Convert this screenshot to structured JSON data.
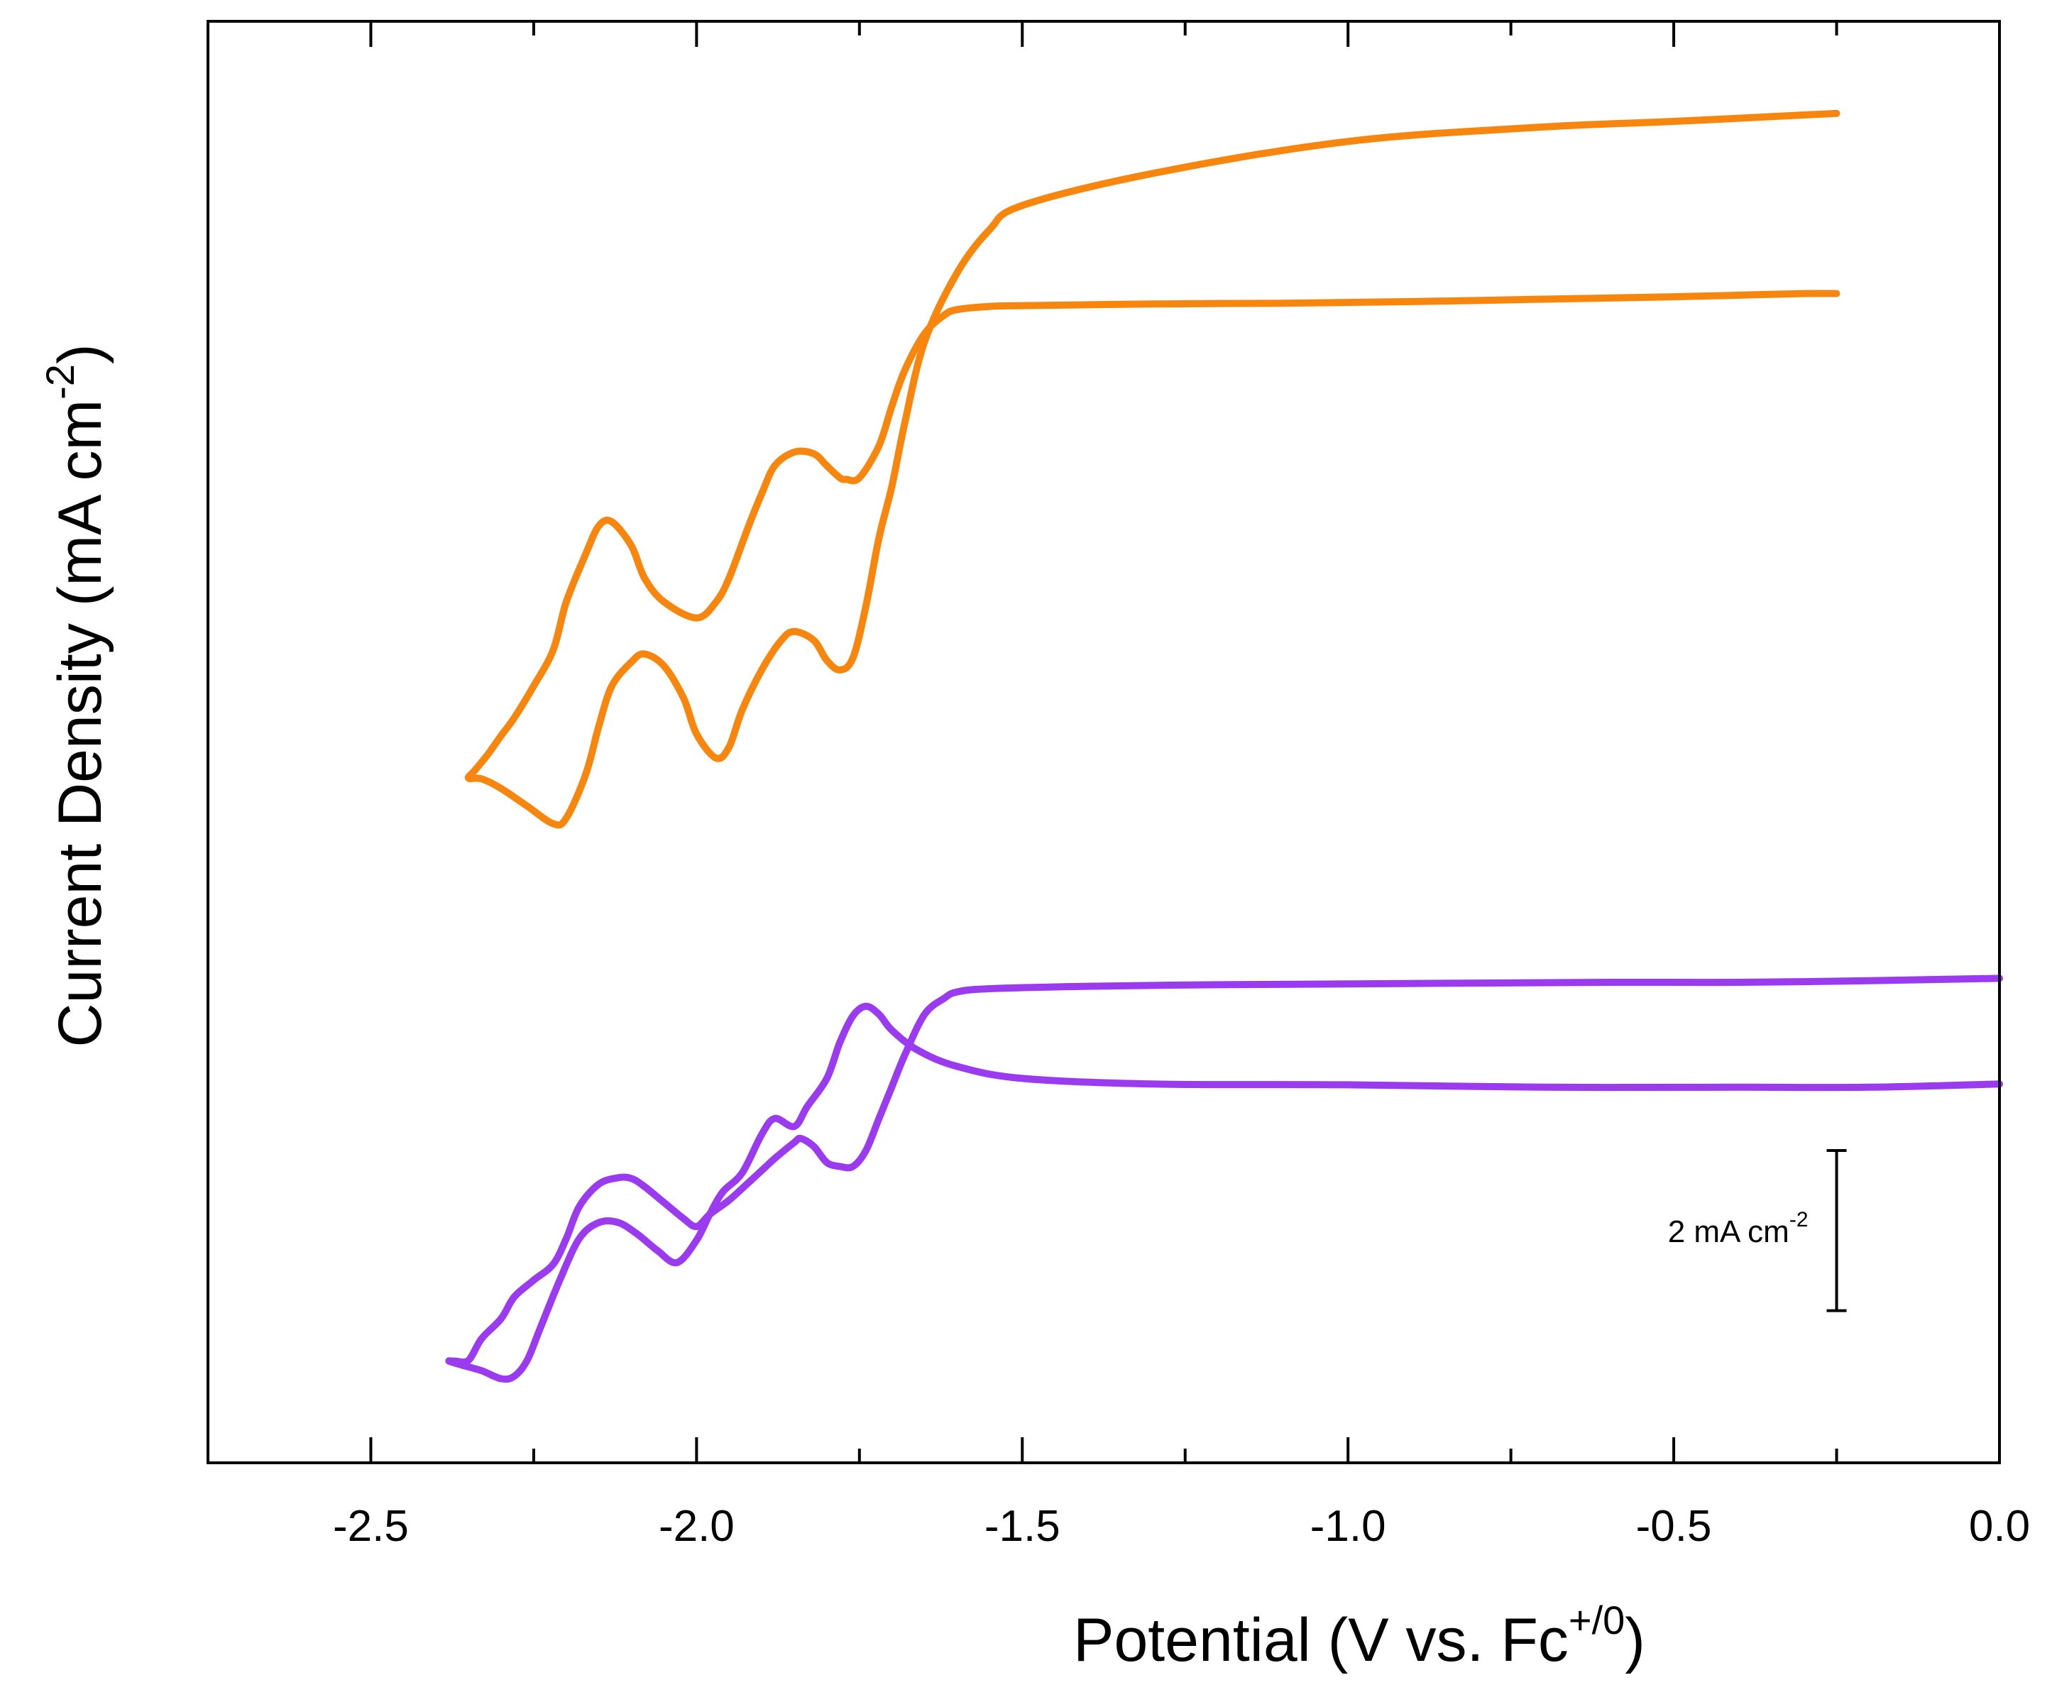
{
  "chart_data": {
    "type": "line",
    "title": "",
    "xlabel": "Potential (V vs. Fc",
    "xlabel_superscript": "+/0",
    "xlabel_suffix": ")",
    "ylabel": "Current Density (mA cm",
    "ylabel_superscript": "-2",
    "ylabel_suffix": ")",
    "xlim": [
      -2.75,
      0.0
    ],
    "ylim": [
      -11.0,
      7.0
    ],
    "x_ticks": [
      -2.5,
      -2.0,
      -1.5,
      -1.0,
      -0.5,
      0.0
    ],
    "x_tick_labels": [
      "-2.5",
      "-2.0",
      "-1.5",
      "-1.0",
      "-0.5",
      "0.0"
    ],
    "x_minor_ticks": [
      -2.25,
      -1.75,
      -1.25,
      -0.75,
      -0.25
    ],
    "y_ticks_shown": false,
    "grid": false,
    "legend": "none",
    "scale_bar": {
      "label": "2 mA cm",
      "label_superscript": "-2",
      "value": 2,
      "x": -0.25,
      "y_bottom": -9.1,
      "y_top": -7.1
    },
    "series": [
      {
        "name": "upper trace",
        "color": "#F7860F",
        "x": [
          -0.25,
          -0.3,
          -0.4,
          -0.5,
          -0.7,
          -0.9,
          -1.1,
          -1.3,
          -1.5,
          -1.55,
          -1.6,
          -1.62,
          -1.65,
          -1.68,
          -1.7,
          -1.72,
          -1.75,
          -1.77,
          -1.78,
          -1.8,
          -1.82,
          -1.85,
          -1.88,
          -1.9,
          -1.92,
          -1.95,
          -1.97,
          -2.0,
          -2.05,
          -2.08,
          -2.1,
          -2.13,
          -2.15,
          -2.17,
          -2.2,
          -2.22,
          -2.25,
          -2.28,
          -2.3,
          -2.32,
          -2.34,
          -2.35,
          -2.33,
          -2.3,
          -2.26,
          -2.22,
          -2.2,
          -2.17,
          -2.15,
          -2.13,
          -2.1,
          -2.08,
          -2.05,
          -2.02,
          -2.0,
          -1.97,
          -1.95,
          -1.93,
          -1.9,
          -1.87,
          -1.85,
          -1.82,
          -1.8,
          -1.78,
          -1.76,
          -1.74,
          -1.72,
          -1.7,
          -1.68,
          -1.65,
          -1.6,
          -1.55,
          -1.5,
          -1.3,
          -1.0,
          -0.7,
          -0.5,
          -0.3,
          -0.25
        ],
        "y": [
          3.6,
          3.6,
          3.58,
          3.56,
          3.53,
          3.5,
          3.48,
          3.47,
          3.45,
          3.44,
          3.4,
          3.33,
          3.1,
          2.65,
          2.2,
          1.7,
          1.3,
          1.28,
          1.3,
          1.45,
          1.6,
          1.62,
          1.45,
          1.1,
          0.7,
          0.05,
          -0.25,
          -0.45,
          -0.25,
          0.05,
          0.45,
          0.75,
          0.7,
          0.35,
          -0.25,
          -0.85,
          -1.3,
          -1.7,
          -1.92,
          -2.15,
          -2.35,
          -2.45,
          -2.46,
          -2.58,
          -2.8,
          -3.02,
          -2.95,
          -2.4,
          -1.8,
          -1.3,
          -1.0,
          -0.9,
          -1.05,
          -1.45,
          -1.9,
          -2.2,
          -2.06,
          -1.6,
          -1.1,
          -0.73,
          -0.62,
          -0.73,
          -0.98,
          -1.1,
          -0.95,
          -0.3,
          0.55,
          1.2,
          2.0,
          3.0,
          3.86,
          4.4,
          4.7,
          5.1,
          5.5,
          5.68,
          5.75,
          5.83,
          5.85
        ]
      },
      {
        "name": "lower trace",
        "color": "#9B3BF0",
        "x": [
          0.0,
          -0.2,
          -0.4,
          -0.6,
          -0.8,
          -1.0,
          -1.2,
          -1.4,
          -1.55,
          -1.6,
          -1.62,
          -1.65,
          -1.68,
          -1.7,
          -1.72,
          -1.74,
          -1.76,
          -1.78,
          -1.8,
          -1.82,
          -1.84,
          -1.85,
          -1.88,
          -1.9,
          -1.92,
          -1.95,
          -1.98,
          -2.0,
          -2.02,
          -2.05,
          -2.08,
          -2.1,
          -2.12,
          -2.15,
          -2.18,
          -2.2,
          -2.22,
          -2.25,
          -2.28,
          -2.3,
          -2.33,
          -2.35,
          -2.37,
          -2.38,
          -2.36,
          -2.33,
          -2.3,
          -2.28,
          -2.26,
          -2.24,
          -2.21,
          -2.18,
          -2.15,
          -2.12,
          -2.09,
          -2.06,
          -2.03,
          -2.0,
          -1.98,
          -1.96,
          -1.93,
          -1.9,
          -1.88,
          -1.85,
          -1.83,
          -1.8,
          -1.78,
          -1.76,
          -1.74,
          -1.72,
          -1.7,
          -1.66,
          -1.6,
          -1.5,
          -1.3,
          -1.0,
          -0.7,
          -0.4,
          -0.2,
          0.0
        ],
        "y": [
          -4.95,
          -4.98,
          -5.0,
          -5.0,
          -5.01,
          -5.02,
          -5.03,
          -5.05,
          -5.08,
          -5.12,
          -5.2,
          -5.4,
          -5.9,
          -6.3,
          -6.7,
          -7.1,
          -7.3,
          -7.3,
          -7.25,
          -7.05,
          -6.95,
          -7.0,
          -7.2,
          -7.35,
          -7.5,
          -7.72,
          -7.9,
          -8.05,
          -7.95,
          -7.75,
          -7.55,
          -7.45,
          -7.44,
          -7.52,
          -7.8,
          -8.2,
          -8.52,
          -8.72,
          -8.93,
          -9.2,
          -9.45,
          -9.72,
          -9.73,
          -9.73,
          -9.78,
          -9.85,
          -9.95,
          -9.92,
          -9.72,
          -9.32,
          -8.72,
          -8.2,
          -8.0,
          -8.0,
          -8.15,
          -8.35,
          -8.5,
          -8.22,
          -7.9,
          -7.62,
          -7.38,
          -6.9,
          -6.7,
          -6.8,
          -6.55,
          -6.2,
          -5.75,
          -5.42,
          -5.3,
          -5.4,
          -5.6,
          -5.85,
          -6.05,
          -6.2,
          -6.27,
          -6.28,
          -6.31,
          -6.31,
          -6.31,
          -6.27
        ]
      }
    ]
  }
}
